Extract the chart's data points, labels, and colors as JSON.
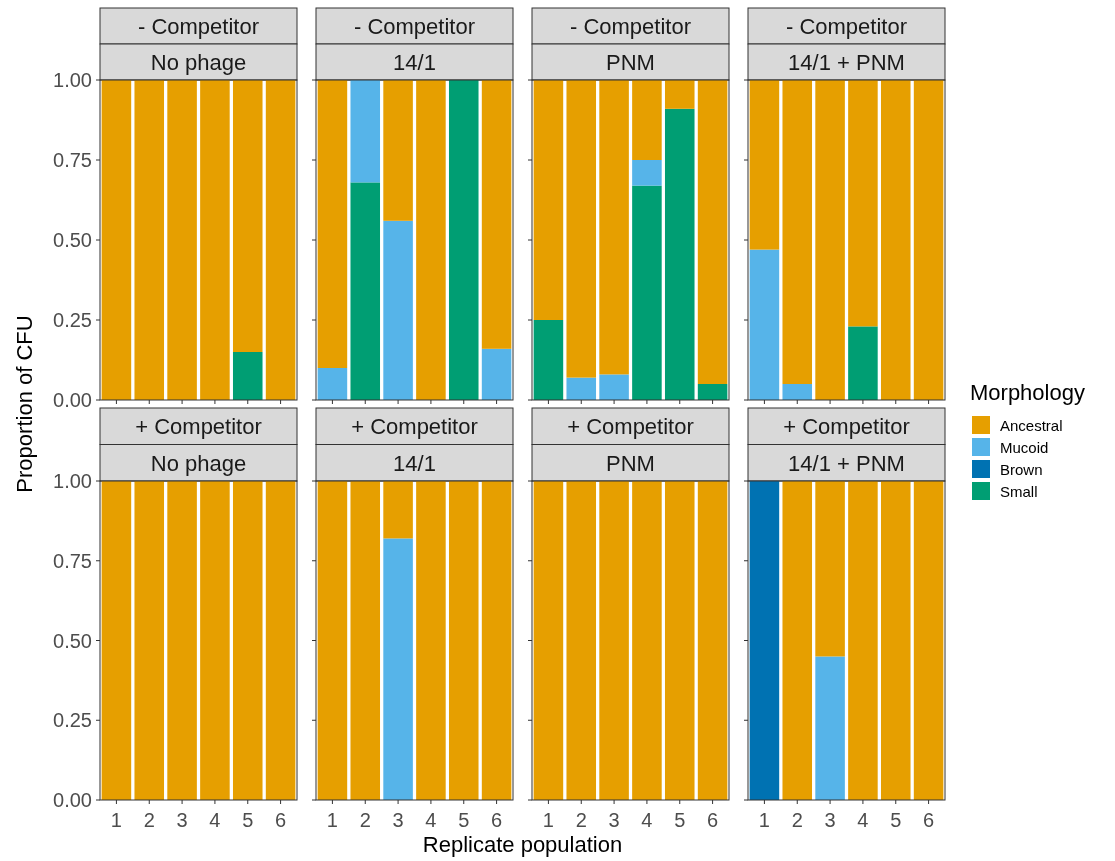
{
  "chart_data": [
    {
      "type": "bar",
      "stacked": true,
      "title": "- Competitor",
      "subtitle": "No phage",
      "ylabel": "Proportion of CFU",
      "categories": [
        "1",
        "2",
        "3",
        "4",
        "5",
        "6"
      ],
      "ylim": [
        0,
        1
      ],
      "yticks": [
        {
          "value": 0,
          "label": "0.00"
        },
        {
          "value": 0.25,
          "label": "0.25"
        },
        {
          "value": 0.5,
          "label": "0.50"
        },
        {
          "value": 0.75,
          "label": "0.75"
        },
        {
          "value": 1,
          "label": "1.00"
        }
      ],
      "tick_labels": "y",
      "series": [
        {
          "color": "#009e73",
          "values": [
            0,
            0,
            0,
            0,
            0.15,
            0
          ]
        },
        {
          "color": "#e69f00",
          "values": [
            1,
            1,
            1,
            1,
            0.85,
            1
          ]
        }
      ]
    },
    {
      "type": "bar",
      "stacked": true,
      "title": "- Competitor",
      "subtitle": "14/1",
      "categories": [
        "1",
        "2",
        "3",
        "4",
        "5",
        "6"
      ],
      "ylim": [
        0,
        1
      ],
      "yticks": [
        {
          "value": 0,
          "label": null
        },
        {
          "value": 0.25,
          "label": null
        },
        {
          "value": 0.5,
          "label": null
        },
        {
          "value": 0.75,
          "label": null
        },
        {
          "value": 1,
          "label": null
        }
      ],
      "tick_labels": false,
      "series": [
        {
          "color": "#009e73",
          "values": [
            0,
            0.68,
            0,
            0,
            1,
            0
          ]
        },
        {
          "color": "#56b4e9",
          "values": [
            0.1,
            0.32,
            0.56,
            0,
            0,
            0.16
          ]
        },
        {
          "color": "#e69f00",
          "values": [
            0.9,
            0,
            0.44,
            1,
            0,
            0.84
          ]
        }
      ]
    },
    {
      "type": "bar",
      "stacked": true,
      "title": "- Competitor",
      "subtitle": "PNM",
      "categories": [
        "1",
        "2",
        "3",
        "4",
        "5",
        "6"
      ],
      "ylim": [
        0,
        1
      ],
      "yticks": [
        {
          "value": 0,
          "label": null
        },
        {
          "value": 0.25,
          "label": null
        },
        {
          "value": 0.5,
          "label": null
        },
        {
          "value": 0.75,
          "label": null
        },
        {
          "value": 1,
          "label": null
        }
      ],
      "tick_labels": false,
      "series": [
        {
          "color": "#009e73",
          "values": [
            0.25,
            0,
            0,
            0.67,
            0.91,
            0.05
          ]
        },
        {
          "color": "#56b4e9",
          "values": [
            0,
            0.07,
            0.08,
            0.08,
            0,
            0
          ]
        },
        {
          "color": "#e69f00",
          "values": [
            0.75,
            0.93,
            0.92,
            0.25,
            0.09,
            0.95
          ]
        }
      ]
    },
    {
      "type": "bar",
      "stacked": true,
      "title": "- Competitor",
      "subtitle": "14/1 + PNM",
      "legend": "right",
      "legend_title": "Morphology",
      "categories": [
        "1",
        "2",
        "3",
        "4",
        "5",
        "6"
      ],
      "ylim": [
        0,
        1
      ],
      "yticks": [
        {
          "value": 0,
          "label": null
        },
        {
          "value": 0.25,
          "label": null
        },
        {
          "value": 0.5,
          "label": null
        },
        {
          "value": 0.75,
          "label": null
        },
        {
          "value": 1,
          "label": null
        }
      ],
      "tick_labels": false,
      "series": [
        {
          "name": "Small",
          "color": "#009e73",
          "values": [
            0,
            0,
            0,
            0.23,
            0,
            0
          ]
        },
        {
          "name": "Brown",
          "color": "#0072b2",
          "values": [
            0,
            0,
            0,
            0,
            0,
            0
          ]
        },
        {
          "name": "Mucoid",
          "color": "#56b4e9",
          "values": [
            0.47,
            0.05,
            0,
            0,
            0,
            0
          ]
        },
        {
          "name": "Ancestral",
          "color": "#e69f00",
          "values": [
            0.53,
            0.95,
            1,
            0.77,
            1,
            1
          ]
        }
      ]
    },
    {
      "type": "bar",
      "stacked": true,
      "title": "+ Competitor",
      "subtitle": "No phage",
      "categories": [
        "1",
        "2",
        "3",
        "4",
        "5",
        "6"
      ],
      "ylim": [
        0,
        1
      ],
      "yticks": [
        {
          "value": 0,
          "label": "0.00"
        },
        {
          "value": 0.25,
          "label": "0.25"
        },
        {
          "value": 0.5,
          "label": "0.50"
        },
        {
          "value": 0.75,
          "label": "0.75"
        },
        {
          "value": 1,
          "label": "1.00"
        }
      ],
      "series": [
        {
          "color": "#e69f00",
          "values": [
            1,
            1,
            1,
            1,
            1,
            1
          ]
        }
      ]
    },
    {
      "type": "bar",
      "stacked": true,
      "title": "+ Competitor",
      "subtitle": "14/1",
      "xlabel": "Replicate population",
      "categories": [
        "1",
        "2",
        "3",
        "4",
        "5",
        "6"
      ],
      "ylim": [
        0,
        1
      ],
      "yticks": [
        {
          "value": 0,
          "label": null
        },
        {
          "value": 0.25,
          "label": null
        },
        {
          "value": 0.5,
          "label": null
        },
        {
          "value": 0.75,
          "label": null
        },
        {
          "value": 1,
          "label": null
        }
      ],
      "tick_labels": "x",
      "series": [
        {
          "color": "#56b4e9",
          "values": [
            0,
            0,
            0.82,
            0,
            0,
            0
          ]
        },
        {
          "color": "#e69f00",
          "values": [
            1,
            1,
            0.18,
            1,
            1,
            1
          ]
        }
      ]
    },
    {
      "type": "bar",
      "stacked": true,
      "title": "+ Competitor",
      "subtitle": "PNM",
      "categories": [
        "1",
        "2",
        "3",
        "4",
        "5",
        "6"
      ],
      "ylim": [
        0,
        1
      ],
      "yticks": [
        {
          "value": 0,
          "label": null
        },
        {
          "value": 0.25,
          "label": null
        },
        {
          "value": 0.5,
          "label": null
        },
        {
          "value": 0.75,
          "label": null
        },
        {
          "value": 1,
          "label": null
        }
      ],
      "tick_labels": "x",
      "series": [
        {
          "color": "#e69f00",
          "values": [
            1,
            1,
            1,
            1,
            1,
            1
          ]
        }
      ]
    },
    {
      "type": "bar",
      "stacked": true,
      "title": "+ Competitor",
      "subtitle": "14/1 + PNM",
      "categories": [
        "1",
        "2",
        "3",
        "4",
        "5",
        "6"
      ],
      "ylim": [
        0,
        1
      ],
      "yticks": [
        {
          "value": 0,
          "label": null
        },
        {
          "value": 0.25,
          "label": null
        },
        {
          "value": 0.5,
          "label": null
        },
        {
          "value": 0.75,
          "label": null
        },
        {
          "value": 1,
          "label": null
        }
      ],
      "tick_labels": "x",
      "series": [
        {
          "color": "#0072b2",
          "values": [
            1,
            0,
            0,
            0,
            0,
            0
          ]
        },
        {
          "color": "#56b4e9",
          "values": [
            0,
            0,
            0.45,
            0,
            0,
            0
          ]
        },
        {
          "color": "#e69f00",
          "values": [
            0,
            1,
            0.55,
            1,
            1,
            1
          ]
        }
      ]
    }
  ]
}
